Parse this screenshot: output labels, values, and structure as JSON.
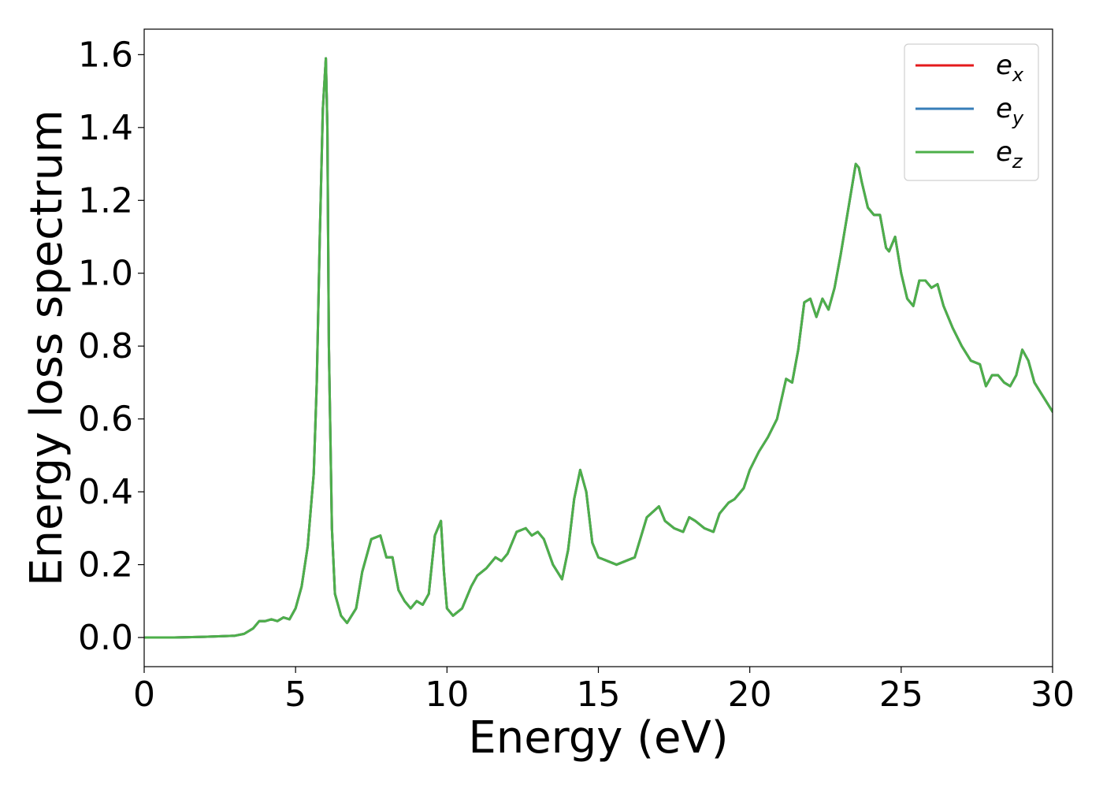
{
  "chart_data": {
    "type": "line",
    "xlabel": "Energy (eV)",
    "ylabel": "Energy loss spectrum",
    "xlim": [
      0,
      30
    ],
    "ylim": [
      -0.08,
      1.67
    ],
    "xticks": [
      0,
      5,
      10,
      15,
      20,
      25,
      30
    ],
    "yticks": [
      0.0,
      0.2,
      0.4,
      0.6,
      0.8,
      1.0,
      1.2,
      1.4,
      1.6
    ],
    "xtick_labels": [
      "0",
      "5",
      "10",
      "15",
      "20",
      "25",
      "30"
    ],
    "ytick_labels": [
      "0.0",
      "0.2",
      "0.4",
      "0.6",
      "0.8",
      "1.0",
      "1.2",
      "1.4",
      "1.6"
    ],
    "grid": false,
    "legend_position": "top-right",
    "series": [
      {
        "name": "e",
        "subscript": "x",
        "color": "#e41a1c"
      },
      {
        "name": "e",
        "subscript": "y",
        "color": "#377eb8"
      },
      {
        "name": "e",
        "subscript": "z",
        "color": "#4daf4a"
      }
    ],
    "x": [
      0,
      1,
      2,
      3,
      3.3,
      3.6,
      3.8,
      4.0,
      4.2,
      4.4,
      4.6,
      4.8,
      5.0,
      5.2,
      5.4,
      5.6,
      5.7,
      5.8,
      5.9,
      6.0,
      6.05,
      6.1,
      6.2,
      6.3,
      6.5,
      6.7,
      7.0,
      7.2,
      7.5,
      7.8,
      8.0,
      8.2,
      8.4,
      8.6,
      8.8,
      9.0,
      9.2,
      9.4,
      9.6,
      9.8,
      9.9,
      10.0,
      10.2,
      10.5,
      10.8,
      11.0,
      11.3,
      11.6,
      11.8,
      12.0,
      12.3,
      12.6,
      12.8,
      13.0,
      13.2,
      13.5,
      13.8,
      14.0,
      14.2,
      14.4,
      14.6,
      14.7,
      14.8,
      15.0,
      15.3,
      15.6,
      15.9,
      16.2,
      16.6,
      17.0,
      17.2,
      17.5,
      17.8,
      18.0,
      18.2,
      18.5,
      18.8,
      19.0,
      19.3,
      19.5,
      19.8,
      20.0,
      20.3,
      20.6,
      20.9,
      21.2,
      21.4,
      21.6,
      21.8,
      22.0,
      22.2,
      22.4,
      22.6,
      22.8,
      23.0,
      23.3,
      23.5,
      23.6,
      23.7,
      23.9,
      24.1,
      24.3,
      24.5,
      24.6,
      24.8,
      25.0,
      25.2,
      25.4,
      25.6,
      25.8,
      26.0,
      26.2,
      26.4,
      26.7,
      27.0,
      27.3,
      27.6,
      27.8,
      28.0,
      28.2,
      28.4,
      28.6,
      28.8,
      29.0,
      29.2,
      29.4,
      29.7,
      30.0
    ],
    "y": [
      0.0,
      0.0,
      0.002,
      0.005,
      0.01,
      0.025,
      0.045,
      0.045,
      0.05,
      0.045,
      0.055,
      0.05,
      0.08,
      0.14,
      0.25,
      0.45,
      0.7,
      1.1,
      1.45,
      1.59,
      1.4,
      0.8,
      0.3,
      0.12,
      0.06,
      0.04,
      0.08,
      0.18,
      0.27,
      0.28,
      0.22,
      0.22,
      0.13,
      0.1,
      0.08,
      0.1,
      0.09,
      0.12,
      0.28,
      0.32,
      0.18,
      0.08,
      0.06,
      0.08,
      0.14,
      0.17,
      0.19,
      0.22,
      0.21,
      0.23,
      0.29,
      0.3,
      0.28,
      0.29,
      0.27,
      0.2,
      0.16,
      0.24,
      0.38,
      0.46,
      0.4,
      0.33,
      0.26,
      0.22,
      0.21,
      0.2,
      0.21,
      0.22,
      0.33,
      0.36,
      0.32,
      0.3,
      0.29,
      0.33,
      0.32,
      0.3,
      0.29,
      0.34,
      0.37,
      0.38,
      0.41,
      0.46,
      0.51,
      0.55,
      0.6,
      0.71,
      0.7,
      0.79,
      0.92,
      0.93,
      0.88,
      0.93,
      0.9,
      0.96,
      1.05,
      1.2,
      1.3,
      1.29,
      1.25,
      1.18,
      1.16,
      1.16,
      1.07,
      1.06,
      1.1,
      1.0,
      0.93,
      0.91,
      0.98,
      0.98,
      0.96,
      0.97,
      0.91,
      0.85,
      0.8,
      0.76,
      0.75,
      0.69,
      0.72,
      0.72,
      0.7,
      0.69,
      0.72,
      0.79,
      0.76,
      0.7,
      0.66,
      0.62
    ]
  }
}
